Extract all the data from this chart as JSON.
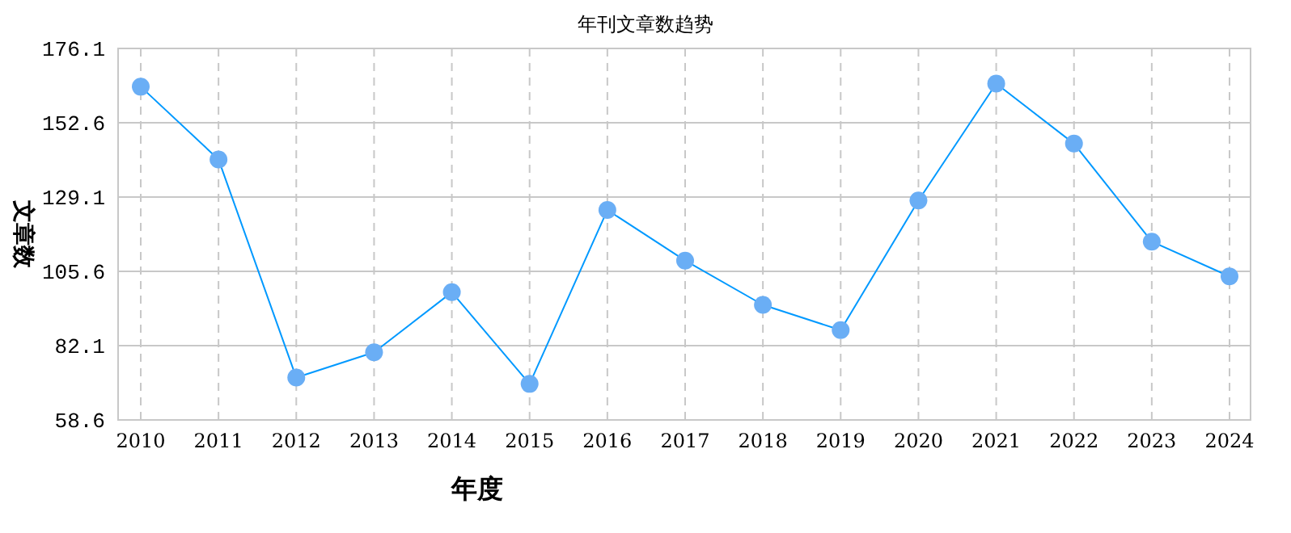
{
  "chart_data": {
    "type": "line",
    "title": "年刊文章数趋势",
    "xlabel": "年度",
    "ylabel": "文章数",
    "categories": [
      "2010",
      "2011",
      "2012",
      "2013",
      "2014",
      "2015",
      "2016",
      "2017",
      "2018",
      "2019",
      "2020",
      "2021",
      "2022",
      "2023",
      "2024"
    ],
    "series": [
      {
        "color": "#0099ff",
        "values": [
          164,
          141,
          72,
          80,
          99,
          70,
          125,
          109,
          95,
          87,
          128,
          165,
          146,
          115,
          104
        ]
      }
    ],
    "ylim": [
      58.6,
      176.1
    ],
    "yticks": [
      58.6,
      82.1,
      105.6,
      129.1,
      152.6,
      176.1
    ],
    "grid": true,
    "marker": "circle",
    "line_style": "solid"
  }
}
